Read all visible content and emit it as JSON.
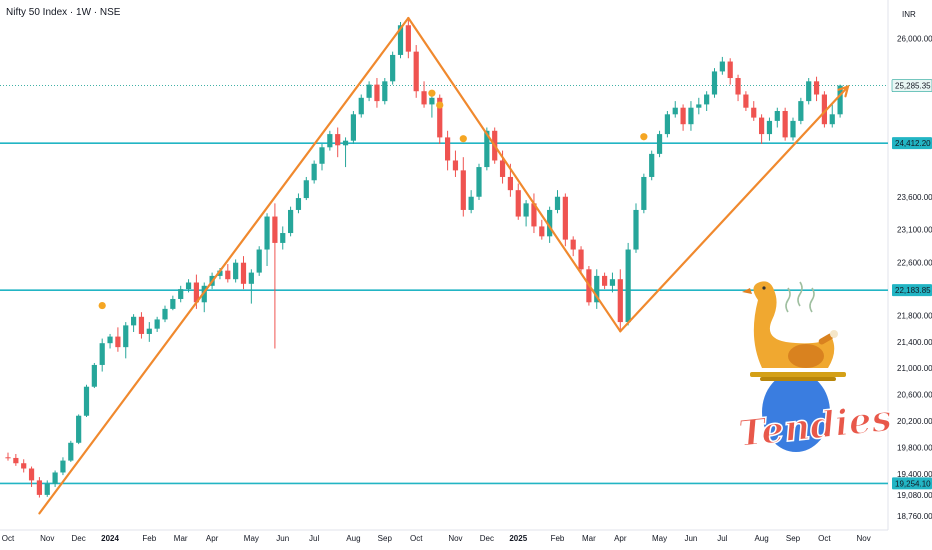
{
  "header": {
    "title": "Nifty 50 Index · 1W · NSE",
    "currency": "INR"
  },
  "colors": {
    "up": "#26a69a",
    "down": "#ef5350",
    "level": "#22b5c4",
    "trend": "#f0892e",
    "marker": "#f5a623"
  },
  "chart_data": {
    "type": "candlestick",
    "ylim": [
      18700,
      26400
    ],
    "y_ticks": [
      "26,000.00",
      "25,285.35",
      "24,412.20",
      "23,600.00",
      "23,100.00",
      "22,600.00",
      "22,183.85",
      "21,800.00",
      "21,400.00",
      "21,000.00",
      "20,600.00",
      "20,200.00",
      "19,800.00",
      "19,400.00",
      "19,254.10",
      "19,080.00",
      "18,760.00"
    ],
    "x_ticks": [
      {
        "label": "Oct",
        "week": 0
      },
      {
        "label": "Nov",
        "week": 5
      },
      {
        "label": "Dec",
        "week": 9
      },
      {
        "label": "2024",
        "week": 13,
        "bold": true
      },
      {
        "label": "Feb",
        "week": 18
      },
      {
        "label": "Mar",
        "week": 22
      },
      {
        "label": "Apr",
        "week": 26
      },
      {
        "label": "May",
        "week": 31
      },
      {
        "label": "Jun",
        "week": 35
      },
      {
        "label": "Jul",
        "week": 39
      },
      {
        "label": "Aug",
        "week": 44
      },
      {
        "label": "Sep",
        "week": 48
      },
      {
        "label": "Oct",
        "week": 52
      },
      {
        "label": "Nov",
        "week": 57
      },
      {
        "label": "Dec",
        "week": 61
      },
      {
        "label": "2025",
        "week": 65,
        "bold": true
      },
      {
        "label": "Feb",
        "week": 70
      },
      {
        "label": "Mar",
        "week": 74
      },
      {
        "label": "Apr",
        "week": 78
      },
      {
        "label": "May",
        "week": 83
      },
      {
        "label": "Jun",
        "week": 87
      },
      {
        "label": "Jul",
        "week": 91
      },
      {
        "label": "Aug",
        "week": 96
      },
      {
        "label": "Sep",
        "week": 100
      },
      {
        "label": "Oct",
        "week": 104
      },
      {
        "label": "Nov",
        "week": 109
      }
    ],
    "levels": [
      {
        "value": 24412.2,
        "label": "24,412.20"
      },
      {
        "value": 22183.85,
        "label": "22,183.85"
      },
      {
        "value": 19254.1,
        "label": "19,254.10"
      }
    ],
    "last_price": {
      "value": 25285.35,
      "label": "25,285.35"
    },
    "trendlines": [
      [
        [
          4,
          18800
        ],
        [
          51,
          26310
        ]
      ],
      [
        [
          51,
          26310
        ],
        [
          78,
          21560
        ]
      ],
      [
        [
          78,
          21560
        ],
        [
          107,
          25270
        ]
      ]
    ],
    "markers": [
      [
        12,
        21950
      ],
      [
        54,
        25170
      ],
      [
        55,
        24990
      ],
      [
        58,
        24480
      ],
      [
        81,
        24510
      ]
    ],
    "candles": [
      [
        19650,
        19720,
        19600,
        19640
      ],
      [
        19640,
        19700,
        19520,
        19560
      ],
      [
        19560,
        19620,
        19420,
        19480
      ],
      [
        19480,
        19510,
        19200,
        19300
      ],
      [
        19300,
        19350,
        19040,
        19080
      ],
      [
        19080,
        19300,
        19050,
        19250
      ],
      [
        19250,
        19450,
        19200,
        19420
      ],
      [
        19420,
        19650,
        19380,
        19600
      ],
      [
        19600,
        19900,
        19580,
        19870
      ],
      [
        19870,
        20300,
        19850,
        20280
      ],
      [
        20280,
        20750,
        20260,
        20720
      ],
      [
        20720,
        21080,
        20700,
        21050
      ],
      [
        21050,
        21450,
        20950,
        21380
      ],
      [
        21380,
        21520,
        21300,
        21480
      ],
      [
        21480,
        21620,
        21250,
        21320
      ],
      [
        21320,
        21700,
        21150,
        21650
      ],
      [
        21650,
        21820,
        21550,
        21780
      ],
      [
        21780,
        21850,
        21450,
        21520
      ],
      [
        21520,
        21700,
        21400,
        21600
      ],
      [
        21600,
        21780,
        21550,
        21740
      ],
      [
        21740,
        21950,
        21700,
        21900
      ],
      [
        21900,
        22100,
        21880,
        22050
      ],
      [
        22050,
        22250,
        22000,
        22200
      ],
      [
        22200,
        22350,
        22150,
        22300
      ],
      [
        22300,
        22420,
        21900,
        22000
      ],
      [
        22000,
        22300,
        21850,
        22250
      ],
      [
        22250,
        22450,
        22200,
        22400
      ],
      [
        22400,
        22520,
        22350,
        22480
      ],
      [
        22480,
        22580,
        22300,
        22350
      ],
      [
        22350,
        22650,
        22300,
        22600
      ],
      [
        22600,
        22700,
        22200,
        22280
      ],
      [
        22280,
        22500,
        21980,
        22450
      ],
      [
        22450,
        22850,
        22400,
        22800
      ],
      [
        22800,
        23350,
        22550,
        23300
      ],
      [
        23300,
        23500,
        21300,
        22900
      ],
      [
        22900,
        23150,
        22800,
        23050
      ],
      [
        23050,
        23450,
        23000,
        23400
      ],
      [
        23400,
        23650,
        23350,
        23580
      ],
      [
        23580,
        23900,
        23550,
        23850
      ],
      [
        23850,
        24150,
        23800,
        24100
      ],
      [
        24100,
        24400,
        24000,
        24350
      ],
      [
        24350,
        24600,
        24300,
        24550
      ],
      [
        24550,
        24650,
        24200,
        24380
      ],
      [
        24380,
        24500,
        24050,
        24450
      ],
      [
        24450,
        24900,
        24400,
        24850
      ],
      [
        24850,
        25150,
        24800,
        25100
      ],
      [
        25100,
        25350,
        25050,
        25300
      ],
      [
        25300,
        25400,
        24950,
        25050
      ],
      [
        25050,
        25400,
        25000,
        25350
      ],
      [
        25350,
        25800,
        25300,
        25750
      ],
      [
        25750,
        26250,
        25700,
        26200
      ],
      [
        26200,
        26280,
        25700,
        25800
      ],
      [
        25800,
        25900,
        25100,
        25200
      ],
      [
        25200,
        25350,
        24950,
        25000
      ],
      [
        25000,
        25200,
        24800,
        25100
      ],
      [
        25100,
        25150,
        24400,
        24500
      ],
      [
        24500,
        24600,
        24000,
        24150
      ],
      [
        24150,
        24300,
        23900,
        24000
      ],
      [
        24000,
        24200,
        23300,
        23400
      ],
      [
        23400,
        23700,
        23350,
        23600
      ],
      [
        23600,
        24100,
        23550,
        24050
      ],
      [
        24050,
        24650,
        24000,
        24600
      ],
      [
        24600,
        24650,
        24100,
        24150
      ],
      [
        24150,
        24300,
        23800,
        23900
      ],
      [
        23900,
        24100,
        23600,
        23700
      ],
      [
        23700,
        23800,
        23250,
        23300
      ],
      [
        23300,
        23550,
        23150,
        23500
      ],
      [
        23500,
        23650,
        23050,
        23150
      ],
      [
        23150,
        23250,
        22950,
        23000
      ],
      [
        23000,
        23450,
        22900,
        23400
      ],
      [
        23400,
        23700,
        23350,
        23600
      ],
      [
        23600,
        23650,
        22850,
        22950
      ],
      [
        22950,
        23000,
        22700,
        22800
      ],
      [
        22800,
        22850,
        22450,
        22500
      ],
      [
        22500,
        22550,
        21950,
        22000
      ],
      [
        22000,
        22500,
        21900,
        22400
      ],
      [
        22400,
        22450,
        22200,
        22250
      ],
      [
        22250,
        22450,
        22150,
        22350
      ],
      [
        22350,
        22500,
        21580,
        21700
      ],
      [
        21700,
        22900,
        21650,
        22800
      ],
      [
        22800,
        23500,
        22750,
        23400
      ],
      [
        23400,
        23950,
        23350,
        23900
      ],
      [
        23900,
        24300,
        23850,
        24250
      ],
      [
        24250,
        24600,
        24200,
        24550
      ],
      [
        24550,
        24900,
        24500,
        24850
      ],
      [
        24850,
        25050,
        24800,
        24950
      ],
      [
        24950,
        25000,
        24600,
        24700
      ],
      [
        24700,
        25050,
        24600,
        24950
      ],
      [
        24950,
        25100,
        24850,
        25000
      ],
      [
        25000,
        25200,
        24900,
        25150
      ],
      [
        25150,
        25550,
        25100,
        25500
      ],
      [
        25500,
        25720,
        25450,
        25650
      ],
      [
        25650,
        25700,
        25300,
        25400
      ],
      [
        25400,
        25450,
        25050,
        25150
      ],
      [
        25150,
        25200,
        24900,
        24950
      ],
      [
        24950,
        25050,
        24750,
        24800
      ],
      [
        24800,
        24850,
        24400,
        24550
      ],
      [
        24550,
        24800,
        24450,
        24750
      ],
      [
        24750,
        24950,
        24650,
        24900
      ],
      [
        24900,
        24950,
        24450,
        24500
      ],
      [
        24500,
        24800,
        24450,
        24750
      ],
      [
        24750,
        25100,
        24700,
        25050
      ],
      [
        25050,
        25400,
        25000,
        25350
      ],
      [
        25350,
        25420,
        25050,
        25150
      ],
      [
        25150,
        25200,
        24650,
        24700
      ],
      [
        24700,
        25000,
        24650,
        24850
      ],
      [
        24850,
        25300,
        24800,
        25285
      ]
    ]
  }
}
